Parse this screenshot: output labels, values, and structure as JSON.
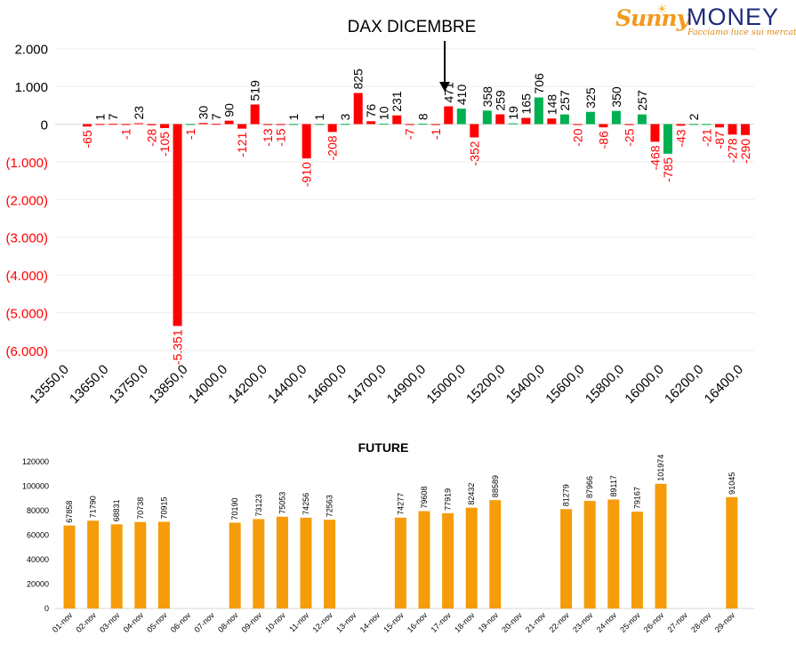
{
  "logo": {
    "brand_left": "Sunny",
    "brand_right": "MONEY",
    "tagline": "Facciamo luce sui mercati"
  },
  "colors": {
    "positive": "#00b050",
    "negative": "#ff0000",
    "future": "#f59c0a"
  },
  "chart_data": [
    {
      "type": "bar",
      "title": "DAX DICEMBRE",
      "ylim": [
        -6000,
        2000
      ],
      "y_ticks": [
        2000,
        1000,
        0,
        -1000,
        -2000,
        -3000,
        -4000,
        -5000,
        -6000
      ],
      "y_tick_labels": [
        "2.000",
        "1.000",
        "0",
        "(1.000)",
        "(2.000)",
        "(3.000)",
        "(4.000)",
        "(5.000)",
        "(6.000)"
      ],
      "x_tick_labels": [
        "13550,0",
        "13650,0",
        "13750,0",
        "13850,0",
        "14000,0",
        "14200,0",
        "14400,0",
        "14600,0",
        "14700,0",
        "14900,0",
        "15000,0",
        "15200,0",
        "15400,0",
        "15600,0",
        "15800,0",
        "16000,0",
        "16200,0",
        "16400,0"
      ],
      "marker_label": "DAX DICEMBRE",
      "marker_position": "15000,0",
      "series": [
        {
          "color": "red",
          "values": [
            -65,
            1,
            7,
            -1,
            23,
            -28,
            -105,
            -5351,
            30,
            7,
            90,
            -121,
            519,
            -13,
            -15,
            -910,
            -208,
            825,
            76,
            231,
            -7,
            -1,
            471,
            -352,
            259,
            165,
            148,
            -20,
            -86,
            -25,
            -468,
            -43,
            -87,
            -278,
            -290
          ]
        },
        {
          "color": "green",
          "values": [
            -1,
            1,
            3,
            10,
            8,
            410,
            358,
            19,
            706,
            257,
            325,
            350,
            257,
            -785,
            2,
            -21
          ]
        }
      ],
      "bars": [
        {
          "v": -65,
          "l": "-65",
          "c": "neg"
        },
        {
          "v": 1,
          "l": "1",
          "c": "neg"
        },
        {
          "v": 7,
          "l": "7",
          "c": "neg"
        },
        {
          "v": -1,
          "l": "-1",
          "c": "neg"
        },
        {
          "v": 23,
          "l": "23",
          "c": "neg"
        },
        {
          "v": -28,
          "l": "-28",
          "c": "neg"
        },
        {
          "v": -105,
          "l": "-105",
          "c": "neg"
        },
        {
          "v": -5351,
          "l": "-5.351",
          "c": "neg"
        },
        {
          "v": -1,
          "l": "-1",
          "c": "pos"
        },
        {
          "v": 30,
          "l": "30",
          "c": "neg"
        },
        {
          "v": 7,
          "l": "7",
          "c": "neg"
        },
        {
          "v": 90,
          "l": "90",
          "c": "neg"
        },
        {
          "v": -121,
          "l": "-121",
          "c": "neg"
        },
        {
          "v": 519,
          "l": "519",
          "c": "neg"
        },
        {
          "v": -13,
          "l": "-13",
          "c": "neg"
        },
        {
          "v": -15,
          "l": "-15",
          "c": "neg"
        },
        {
          "v": 1,
          "l": "1",
          "c": "pos"
        },
        {
          "v": -910,
          "l": "-910",
          "c": "neg"
        },
        {
          "v": 1,
          "l": "1",
          "c": "pos"
        },
        {
          "v": -208,
          "l": "-208",
          "c": "neg"
        },
        {
          "v": 3,
          "l": "3",
          "c": "pos"
        },
        {
          "v": 825,
          "l": "825",
          "c": "neg"
        },
        {
          "v": 76,
          "l": "76",
          "c": "neg"
        },
        {
          "v": 10,
          "l": "10",
          "c": "pos"
        },
        {
          "v": 231,
          "l": "231",
          "c": "neg"
        },
        {
          "v": -7,
          "l": "-7",
          "c": "neg"
        },
        {
          "v": 8,
          "l": "8",
          "c": "pos"
        },
        {
          "v": -1,
          "l": "-1",
          "c": "neg"
        },
        {
          "v": 471,
          "l": "471",
          "c": "neg"
        },
        {
          "v": 410,
          "l": "410",
          "c": "pos"
        },
        {
          "v": -352,
          "l": "-352",
          "c": "neg"
        },
        {
          "v": 358,
          "l": "358",
          "c": "pos"
        },
        {
          "v": 259,
          "l": "259",
          "c": "neg"
        },
        {
          "v": 19,
          "l": "19",
          "c": "pos"
        },
        {
          "v": 165,
          "l": "165",
          "c": "neg"
        },
        {
          "v": 706,
          "l": "706",
          "c": "pos"
        },
        {
          "v": 148,
          "l": "148",
          "c": "neg"
        },
        {
          "v": 257,
          "l": "257",
          "c": "pos"
        },
        {
          "v": -20,
          "l": "-20",
          "c": "neg"
        },
        {
          "v": 325,
          "l": "325",
          "c": "pos"
        },
        {
          "v": -86,
          "l": "-86",
          "c": "neg"
        },
        {
          "v": 350,
          "l": "350",
          "c": "pos"
        },
        {
          "v": -25,
          "l": "-25",
          "c": "neg"
        },
        {
          "v": 257,
          "l": "257",
          "c": "pos"
        },
        {
          "v": -468,
          "l": "-468",
          "c": "neg"
        },
        {
          "v": -785,
          "l": "-785",
          "c": "pos"
        },
        {
          "v": -43,
          "l": "-43",
          "c": "neg"
        },
        {
          "v": 2,
          "l": "2",
          "c": "pos"
        },
        {
          "v": -21,
          "l": "-21",
          "c": "pos"
        },
        {
          "v": -87,
          "l": "-87",
          "c": "neg"
        },
        {
          "v": -278,
          "l": "-278",
          "c": "neg"
        },
        {
          "v": -290,
          "l": "-290",
          "c": "neg"
        }
      ]
    },
    {
      "type": "bar",
      "title": "FUTURE",
      "ylim": [
        0,
        120000
      ],
      "y_ticks": [
        0,
        20000,
        40000,
        60000,
        80000,
        100000,
        120000
      ],
      "y_tick_labels": [
        "0",
        "20000",
        "40000",
        "60000",
        "80000",
        "100000",
        "120000"
      ],
      "categories": [
        "01-nov",
        "02-nov",
        "03-nov",
        "04-nov",
        "05-nov",
        "06-nov",
        "07-nov",
        "08-nov",
        "09-nov",
        "10-nov",
        "11-nov",
        "12-nov",
        "13-nov",
        "14-nov",
        "15-nov",
        "16-nov",
        "17-nov",
        "18-nov",
        "19-nov",
        "20-nov",
        "21-nov",
        "22-nov",
        "23-nov",
        "24-nov",
        "25-nov",
        "26-nov",
        "27-nov",
        "28-nov",
        "29-nov"
      ],
      "values": [
        67858,
        71790,
        68831,
        70738,
        70915,
        null,
        null,
        70190,
        73123,
        75053,
        74256,
        72563,
        null,
        null,
        74277,
        79608,
        77919,
        82432,
        88589,
        null,
        null,
        81279,
        87966,
        89117,
        79167,
        101974,
        null,
        null,
        91045
      ]
    }
  ]
}
